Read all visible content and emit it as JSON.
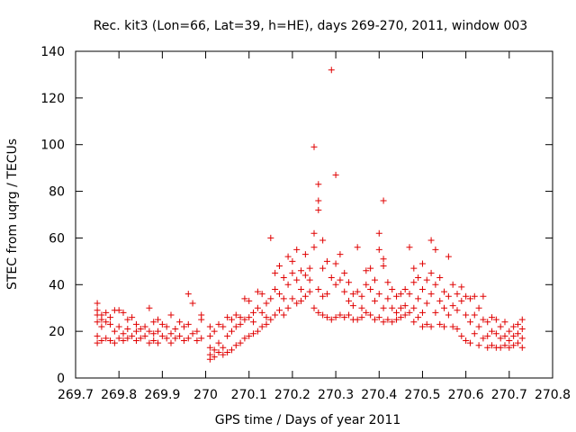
{
  "chart_data": {
    "type": "scatter",
    "title": "Rec. kit3 (Lon=66, Lat=39, h=HE), days 269-270, 2011, window 003",
    "xlabel": "GPS time / Days of year 2011",
    "ylabel": "STEC from uqrg / TECUs",
    "xlim": [
      269.7,
      270.8
    ],
    "ylim": [
      0,
      140
    ],
    "x_ticks": [
      269.7,
      269.8,
      269.9,
      270,
      270.1,
      270.2,
      270.3,
      270.4,
      270.5,
      270.6,
      270.7,
      270.8
    ],
    "x_tick_labels": [
      "269.7",
      "269.8",
      "269.9",
      "270",
      "270.1",
      "270.2",
      "270.3",
      "270.4",
      "270.5",
      "270.6",
      "270.7",
      "270.8"
    ],
    "y_ticks": [
      0,
      20,
      40,
      60,
      80,
      100,
      120,
      140
    ],
    "y_tick_labels": [
      "0",
      "20",
      "40",
      "60",
      "80",
      "100",
      "120",
      "140"
    ],
    "grid": false,
    "marker": "plus",
    "color": "#e00000",
    "points": [
      [
        269.75,
        32
      ],
      [
        269.75,
        29
      ],
      [
        269.75,
        27
      ],
      [
        269.75,
        24
      ],
      [
        269.75,
        18
      ],
      [
        269.75,
        15
      ],
      [
        269.76,
        27
      ],
      [
        269.76,
        25
      ],
      [
        269.76,
        22
      ],
      [
        269.76,
        16
      ],
      [
        269.77,
        28
      ],
      [
        269.77,
        24
      ],
      [
        269.77,
        17
      ],
      [
        269.78,
        26
      ],
      [
        269.78,
        23
      ],
      [
        269.78,
        16
      ],
      [
        269.79,
        29
      ],
      [
        269.79,
        20
      ],
      [
        269.79,
        15
      ],
      [
        269.8,
        29
      ],
      [
        269.8,
        22
      ],
      [
        269.8,
        17
      ],
      [
        269.81,
        28
      ],
      [
        269.81,
        19
      ],
      [
        269.81,
        16
      ],
      [
        269.82,
        25
      ],
      [
        269.82,
        21
      ],
      [
        269.82,
        17
      ],
      [
        269.83,
        26
      ],
      [
        269.83,
        18
      ],
      [
        269.84,
        23
      ],
      [
        269.84,
        20
      ],
      [
        269.84,
        16
      ],
      [
        269.85,
        21
      ],
      [
        269.85,
        17
      ],
      [
        269.86,
        22
      ],
      [
        269.86,
        18
      ],
      [
        269.87,
        30
      ],
      [
        269.87,
        20
      ],
      [
        269.87,
        15
      ],
      [
        269.88,
        24
      ],
      [
        269.88,
        19
      ],
      [
        269.88,
        16
      ],
      [
        269.89,
        25
      ],
      [
        269.89,
        20
      ],
      [
        269.89,
        15
      ],
      [
        269.9,
        23
      ],
      [
        269.9,
        18
      ],
      [
        269.91,
        22
      ],
      [
        269.91,
        17
      ],
      [
        269.92,
        27
      ],
      [
        269.92,
        19
      ],
      [
        269.92,
        15
      ],
      [
        269.93,
        21
      ],
      [
        269.93,
        17
      ],
      [
        269.94,
        24
      ],
      [
        269.94,
        18
      ],
      [
        269.95,
        22
      ],
      [
        269.95,
        16
      ],
      [
        269.96,
        36
      ],
      [
        269.96,
        23
      ],
      [
        269.96,
        17
      ],
      [
        269.97,
        32
      ],
      [
        269.97,
        19
      ],
      [
        269.98,
        20
      ],
      [
        269.98,
        16
      ],
      [
        269.99,
        27
      ],
      [
        269.99,
        25
      ],
      [
        269.99,
        17
      ],
      [
        270.01,
        22
      ],
      [
        270.01,
        18
      ],
      [
        270.01,
        13
      ],
      [
        270.01,
        10
      ],
      [
        270.01,
        8
      ],
      [
        270.02,
        20
      ],
      [
        270.02,
        12
      ],
      [
        270.02,
        9
      ],
      [
        270.03,
        23
      ],
      [
        270.03,
        15
      ],
      [
        270.03,
        11
      ],
      [
        270.04,
        22
      ],
      [
        270.04,
        13
      ],
      [
        270.04,
        10
      ],
      [
        270.05,
        26
      ],
      [
        270.05,
        18
      ],
      [
        270.05,
        11
      ],
      [
        270.06,
        25
      ],
      [
        270.06,
        20
      ],
      [
        270.06,
        12
      ],
      [
        270.07,
        27
      ],
      [
        270.07,
        22
      ],
      [
        270.07,
        14
      ],
      [
        270.08,
        26
      ],
      [
        270.08,
        23
      ],
      [
        270.08,
        15
      ],
      [
        270.09,
        34
      ],
      [
        270.09,
        25
      ],
      [
        270.09,
        17
      ],
      [
        270.1,
        33
      ],
      [
        270.1,
        26
      ],
      [
        270.1,
        18
      ],
      [
        270.11,
        28
      ],
      [
        270.11,
        24
      ],
      [
        270.11,
        19
      ],
      [
        270.12,
        37
      ],
      [
        270.12,
        30
      ],
      [
        270.12,
        20
      ],
      [
        270.13,
        36
      ],
      [
        270.13,
        28
      ],
      [
        270.13,
        22
      ],
      [
        270.14,
        32
      ],
      [
        270.14,
        26
      ],
      [
        270.14,
        23
      ],
      [
        270.15,
        60
      ],
      [
        270.15,
        34
      ],
      [
        270.15,
        25
      ],
      [
        270.16,
        45
      ],
      [
        270.16,
        38
      ],
      [
        270.16,
        27
      ],
      [
        270.17,
        48
      ],
      [
        270.17,
        36
      ],
      [
        270.17,
        29
      ],
      [
        270.18,
        43
      ],
      [
        270.18,
        34
      ],
      [
        270.18,
        27
      ],
      [
        270.19,
        52
      ],
      [
        270.19,
        40
      ],
      [
        270.19,
        30
      ],
      [
        270.2,
        50
      ],
      [
        270.2,
        45
      ],
      [
        270.2,
        34
      ],
      [
        270.21,
        55
      ],
      [
        270.21,
        42
      ],
      [
        270.21,
        32
      ],
      [
        270.22,
        46
      ],
      [
        270.22,
        38
      ],
      [
        270.22,
        33
      ],
      [
        270.23,
        53
      ],
      [
        270.23,
        44
      ],
      [
        270.23,
        35
      ],
      [
        270.24,
        47
      ],
      [
        270.24,
        42
      ],
      [
        270.24,
        37
      ],
      [
        270.25,
        99
      ],
      [
        270.25,
        62
      ],
      [
        270.25,
        56
      ],
      [
        270.25,
        30
      ],
      [
        270.26,
        83
      ],
      [
        270.26,
        76
      ],
      [
        270.26,
        72
      ],
      [
        270.26,
        38
      ],
      [
        270.26,
        28
      ],
      [
        270.27,
        59
      ],
      [
        270.27,
        47
      ],
      [
        270.27,
        35
      ],
      [
        270.27,
        27
      ],
      [
        270.28,
        50
      ],
      [
        270.28,
        36
      ],
      [
        270.28,
        26
      ],
      [
        270.29,
        132
      ],
      [
        270.29,
        43
      ],
      [
        270.29,
        25
      ],
      [
        270.3,
        87
      ],
      [
        270.3,
        49
      ],
      [
        270.3,
        40
      ],
      [
        270.3,
        26
      ],
      [
        270.31,
        53
      ],
      [
        270.31,
        42
      ],
      [
        270.31,
        27
      ],
      [
        270.32,
        45
      ],
      [
        270.32,
        37
      ],
      [
        270.32,
        26
      ],
      [
        270.33,
        41
      ],
      [
        270.33,
        33
      ],
      [
        270.33,
        27
      ],
      [
        270.34,
        36
      ],
      [
        270.34,
        31
      ],
      [
        270.34,
        25
      ],
      [
        270.35,
        56
      ],
      [
        270.35,
        37
      ],
      [
        270.35,
        25
      ],
      [
        270.36,
        35
      ],
      [
        270.36,
        30
      ],
      [
        270.36,
        26
      ],
      [
        270.37,
        46
      ],
      [
        270.37,
        40
      ],
      [
        270.37,
        28
      ],
      [
        270.38,
        47
      ],
      [
        270.38,
        38
      ],
      [
        270.38,
        27
      ],
      [
        270.39,
        42
      ],
      [
        270.39,
        33
      ],
      [
        270.39,
        25
      ],
      [
        270.4,
        62
      ],
      [
        270.4,
        55
      ],
      [
        270.4,
        36
      ],
      [
        270.4,
        26
      ],
      [
        270.41,
        76
      ],
      [
        270.41,
        51
      ],
      [
        270.41,
        48
      ],
      [
        270.41,
        30
      ],
      [
        270.41,
        24
      ],
      [
        270.42,
        41
      ],
      [
        270.42,
        34
      ],
      [
        270.42,
        25
      ],
      [
        270.43,
        38
      ],
      [
        270.43,
        30
      ],
      [
        270.43,
        24
      ],
      [
        270.44,
        35
      ],
      [
        270.44,
        28
      ],
      [
        270.44,
        25
      ],
      [
        270.45,
        36
      ],
      [
        270.45,
        30
      ],
      [
        270.45,
        26
      ],
      [
        270.46,
        38
      ],
      [
        270.46,
        31
      ],
      [
        270.46,
        27
      ],
      [
        270.47,
        56
      ],
      [
        270.47,
        36
      ],
      [
        270.47,
        28
      ],
      [
        270.48,
        47
      ],
      [
        270.48,
        41
      ],
      [
        270.48,
        30
      ],
      [
        270.48,
        24
      ],
      [
        270.49,
        43
      ],
      [
        270.49,
        34
      ],
      [
        270.49,
        26
      ],
      [
        270.5,
        49
      ],
      [
        270.5,
        38
      ],
      [
        270.5,
        28
      ],
      [
        270.5,
        22
      ],
      [
        270.51,
        42
      ],
      [
        270.51,
        32
      ],
      [
        270.51,
        23
      ],
      [
        270.52,
        59
      ],
      [
        270.52,
        45
      ],
      [
        270.52,
        36
      ],
      [
        270.52,
        22
      ],
      [
        270.53,
        55
      ],
      [
        270.53,
        40
      ],
      [
        270.53,
        28
      ],
      [
        270.54,
        43
      ],
      [
        270.54,
        33
      ],
      [
        270.54,
        23
      ],
      [
        270.55,
        37
      ],
      [
        270.55,
        30
      ],
      [
        270.55,
        22
      ],
      [
        270.56,
        52
      ],
      [
        270.56,
        35
      ],
      [
        270.56,
        27
      ],
      [
        270.57,
        40
      ],
      [
        270.57,
        31
      ],
      [
        270.57,
        22
      ],
      [
        270.58,
        36
      ],
      [
        270.58,
        29
      ],
      [
        270.58,
        21
      ],
      [
        270.59,
        39
      ],
      [
        270.59,
        33
      ],
      [
        270.59,
        18
      ],
      [
        270.6,
        35
      ],
      [
        270.6,
        27
      ],
      [
        270.6,
        16
      ],
      [
        270.61,
        34
      ],
      [
        270.61,
        24
      ],
      [
        270.61,
        15
      ],
      [
        270.62,
        35
      ],
      [
        270.62,
        27
      ],
      [
        270.62,
        19
      ],
      [
        270.63,
        30
      ],
      [
        270.63,
        22
      ],
      [
        270.63,
        14
      ],
      [
        270.64,
        35
      ],
      [
        270.64,
        25
      ],
      [
        270.64,
        17
      ],
      [
        270.65,
        24
      ],
      [
        270.65,
        18
      ],
      [
        270.65,
        13
      ],
      [
        270.66,
        26
      ],
      [
        270.66,
        20
      ],
      [
        270.66,
        14
      ],
      [
        270.67,
        25
      ],
      [
        270.67,
        19
      ],
      [
        270.67,
        13
      ],
      [
        270.68,
        22
      ],
      [
        270.68,
        17
      ],
      [
        270.68,
        13
      ],
      [
        270.69,
        24
      ],
      [
        270.69,
        18
      ],
      [
        270.69,
        14
      ],
      [
        270.7,
        20
      ],
      [
        270.7,
        16
      ],
      [
        270.7,
        13
      ],
      [
        270.71,
        22
      ],
      [
        270.71,
        18
      ],
      [
        270.71,
        14
      ],
      [
        270.72,
        23
      ],
      [
        270.72,
        19
      ],
      [
        270.72,
        15
      ],
      [
        270.73,
        25
      ],
      [
        270.73,
        21
      ],
      [
        270.73,
        17
      ],
      [
        270.73,
        13
      ]
    ]
  }
}
